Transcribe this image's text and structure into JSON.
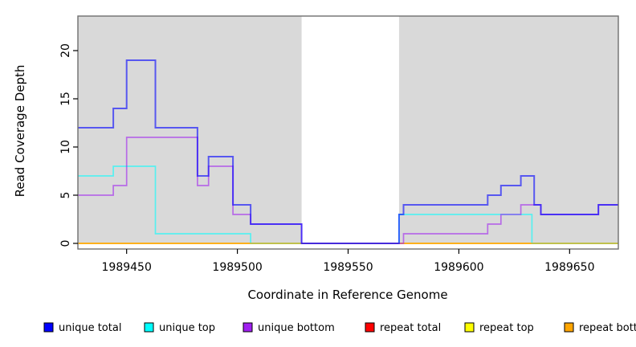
{
  "chart_data": {
    "type": "line",
    "subtype": "step-coverage",
    "title": "",
    "xlabel": "Coordinate in Reference Genome",
    "ylabel": "Read Coverage Depth",
    "x_range": [
      1989428,
      1989672
    ],
    "y_range": [
      0,
      23.6
    ],
    "x_ticks": [
      "1989450",
      "1989500",
      "1989550",
      "1989600",
      "1989650"
    ],
    "x_tick_values": [
      1989450,
      1989500,
      1989550,
      1989600,
      1989650
    ],
    "y_ticks": [
      "0",
      "5",
      "10",
      "15",
      "20"
    ],
    "y_tick_values": [
      0,
      5,
      10,
      15,
      20
    ],
    "grid": false,
    "legend_position": "bottom",
    "panel_background_color": "#d9d9d9",
    "no_data_band": {
      "x_start": 1989529,
      "x_end": 1989573,
      "color": "#ffffff"
    },
    "series": [
      {
        "name": "repeat total",
        "color": "#ff0000",
        "steps": [
          [
            1989428,
            0
          ]
        ]
      },
      {
        "name": "repeat top",
        "color": "#ffff00",
        "steps": [
          [
            1989428,
            0
          ]
        ]
      },
      {
        "name": "unique top",
        "color": "#00ffff",
        "steps": [
          [
            1989428,
            7
          ],
          [
            1989444,
            8
          ],
          [
            1989463,
            1
          ],
          [
            1989506,
            0
          ],
          [
            1989573,
            3
          ],
          [
            1989633,
            0
          ]
        ]
      },
      {
        "name": "repeat bottom",
        "color": "#ffa500",
        "steps": [
          [
            1989428,
            0
          ]
        ]
      },
      {
        "name": "unique bottom",
        "color": "#a020f0",
        "steps": [
          [
            1989428,
            5
          ],
          [
            1989444,
            6
          ],
          [
            1989450,
            11
          ],
          [
            1989482,
            6
          ],
          [
            1989487,
            8
          ],
          [
            1989498,
            3
          ],
          [
            1989506,
            2
          ],
          [
            1989529,
            0
          ],
          [
            1989575,
            1
          ],
          [
            1989613,
            2
          ],
          [
            1989619,
            3
          ],
          [
            1989628,
            4
          ],
          [
            1989637,
            3
          ],
          [
            1989663,
            4
          ]
        ]
      },
      {
        "name": "unique total",
        "color": "#0000ff",
        "steps": [
          [
            1989428,
            12
          ],
          [
            1989444,
            14
          ],
          [
            1989450,
            19
          ],
          [
            1989463,
            12
          ],
          [
            1989482,
            7
          ],
          [
            1989487,
            9
          ],
          [
            1989498,
            4
          ],
          [
            1989506,
            2
          ],
          [
            1989529,
            0
          ],
          [
            1989573,
            3
          ],
          [
            1989575,
            4
          ],
          [
            1989613,
            5
          ],
          [
            1989619,
            6
          ],
          [
            1989628,
            7
          ],
          [
            1989634,
            4
          ],
          [
            1989637,
            3
          ],
          [
            1989663,
            4
          ]
        ]
      }
    ],
    "legend": [
      {
        "label": "unique total",
        "color": "#0000ff"
      },
      {
        "label": "unique top",
        "color": "#00ffff"
      },
      {
        "label": "unique bottom",
        "color": "#a020f0"
      },
      {
        "label": "repeat total",
        "color": "#ff0000"
      },
      {
        "label": "repeat top",
        "color": "#ffff00"
      },
      {
        "label": "repeat bottom",
        "color": "#ffa500"
      }
    ]
  }
}
